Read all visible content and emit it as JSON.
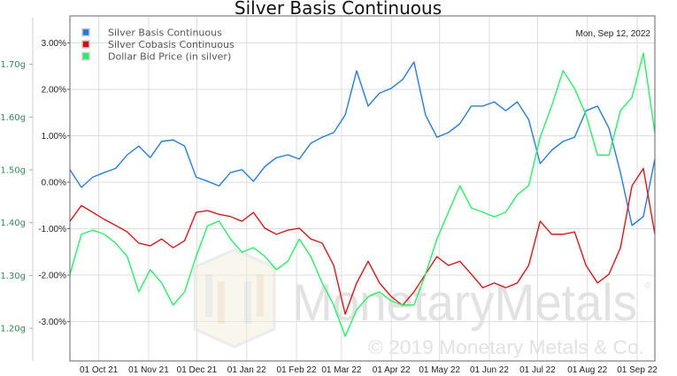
{
  "chart_data": {
    "type": "line",
    "title": "Silver Basis Continuous",
    "date_label": "Mon, Sep 12, 2022",
    "x_start_date": "2021-09-13",
    "x_end_date": "2022-09-12",
    "x_step_days": 7,
    "x_ticks": [
      {
        "label": "01 Oct 21",
        "day": 18
      },
      {
        "label": "01 Nov 21",
        "day": 49
      },
      {
        "label": "01 Dec 21",
        "day": 79
      },
      {
        "label": "01 Jan 22",
        "day": 110
      },
      {
        "label": "01 Feb 22",
        "day": 141
      },
      {
        "label": "01 Mar 22",
        "day": 169
      },
      {
        "label": "01 Apr 22",
        "day": 200
      },
      {
        "label": "01 May 22",
        "day": 230
      },
      {
        "label": "01 Jun 22",
        "day": 261
      },
      {
        "label": "01 Jul 22",
        "day": 291
      },
      {
        "label": "01 Aug 22",
        "day": 322
      },
      {
        "label": "01 Sep 22",
        "day": 353
      }
    ],
    "y_left_pct": {
      "range": [
        -3.9,
        3.5
      ],
      "ticks": [
        3,
        2,
        1,
        0,
        -1,
        -2,
        -3
      ],
      "labels": [
        "3.00%",
        "2.00%",
        "1.00%",
        "0.00%",
        "-1.00%",
        "-2.00%",
        "-3.00%"
      ]
    },
    "y_left_grams": {
      "range": [
        1.131,
        1.755
      ],
      "ticks": [
        1.7,
        1.6,
        1.5,
        1.4,
        1.3,
        1.2
      ],
      "labels": [
        "1.70g",
        "1.60g",
        "1.50g",
        "1.40g",
        "1.30g",
        "1.20g"
      ]
    },
    "grid": true,
    "legend_position": "top-left",
    "series": [
      {
        "name": "Silver Basis Continuous",
        "axis": "pct",
        "color": "#1f78d1",
        "values": [
          0.27,
          -0.11,
          0.11,
          0.21,
          0.3,
          0.59,
          0.78,
          0.53,
          0.88,
          0.91,
          0.78,
          0.11,
          0.02,
          -0.08,
          0.21,
          0.27,
          0.02,
          0.34,
          0.53,
          0.59,
          0.5,
          0.84,
          0.97,
          1.07,
          1.45,
          2.4,
          1.64,
          1.92,
          2.02,
          2.21,
          2.59,
          1.45,
          0.97,
          1.07,
          1.26,
          1.64,
          1.64,
          1.73,
          1.54,
          1.73,
          1.35,
          0.4,
          0.69,
          0.88,
          0.97,
          1.54,
          1.64,
          1.16,
          0.21,
          -0.93,
          -0.74,
          0.5
        ]
      },
      {
        "name": "Silver Cobasis Continuous",
        "axis": "pct",
        "color": "#cc1111",
        "values": [
          -0.84,
          -0.5,
          -0.65,
          -0.8,
          -0.93,
          -1.07,
          -1.31,
          -1.37,
          -1.22,
          -1.41,
          -1.26,
          -0.65,
          -0.61,
          -0.69,
          -0.74,
          -0.84,
          -0.65,
          -0.99,
          -1.12,
          -1.03,
          -0.99,
          -1.22,
          -1.31,
          -1.79,
          -2.84,
          -2.17,
          -1.7,
          -2.17,
          -2.46,
          -2.65,
          -2.36,
          -1.98,
          -1.6,
          -1.79,
          -1.7,
          -1.98,
          -2.27,
          -2.17,
          -2.27,
          -2.17,
          -1.79,
          -0.84,
          -1.12,
          -1.12,
          -1.07,
          -1.79,
          -2.17,
          -1.98,
          -1.41,
          -0.08,
          0.3,
          -1.12
        ]
      },
      {
        "name": "Dollar Bid Price (in silver)",
        "axis": "grams",
        "color": "#22ee66",
        "values": [
          1.302,
          1.378,
          1.386,
          1.378,
          1.361,
          1.336,
          1.269,
          1.311,
          1.286,
          1.244,
          1.269,
          1.336,
          1.394,
          1.403,
          1.369,
          1.344,
          1.353,
          1.336,
          1.311,
          1.327,
          1.369,
          1.336,
          1.286,
          1.244,
          1.185,
          1.235,
          1.26,
          1.269,
          1.252,
          1.244,
          1.244,
          1.302,
          1.369,
          1.42,
          1.47,
          1.428,
          1.42,
          1.411,
          1.42,
          1.453,
          1.47,
          1.562,
          1.621,
          1.688,
          1.654,
          1.604,
          1.528,
          1.528,
          1.612,
          1.637,
          1.721,
          1.57
        ]
      }
    ]
  },
  "watermark": {
    "brand_a": "Monetary",
    "brand_b": "Metals",
    "registered": "®",
    "copyright": "© 2019 Monetary Metals & Co."
  }
}
